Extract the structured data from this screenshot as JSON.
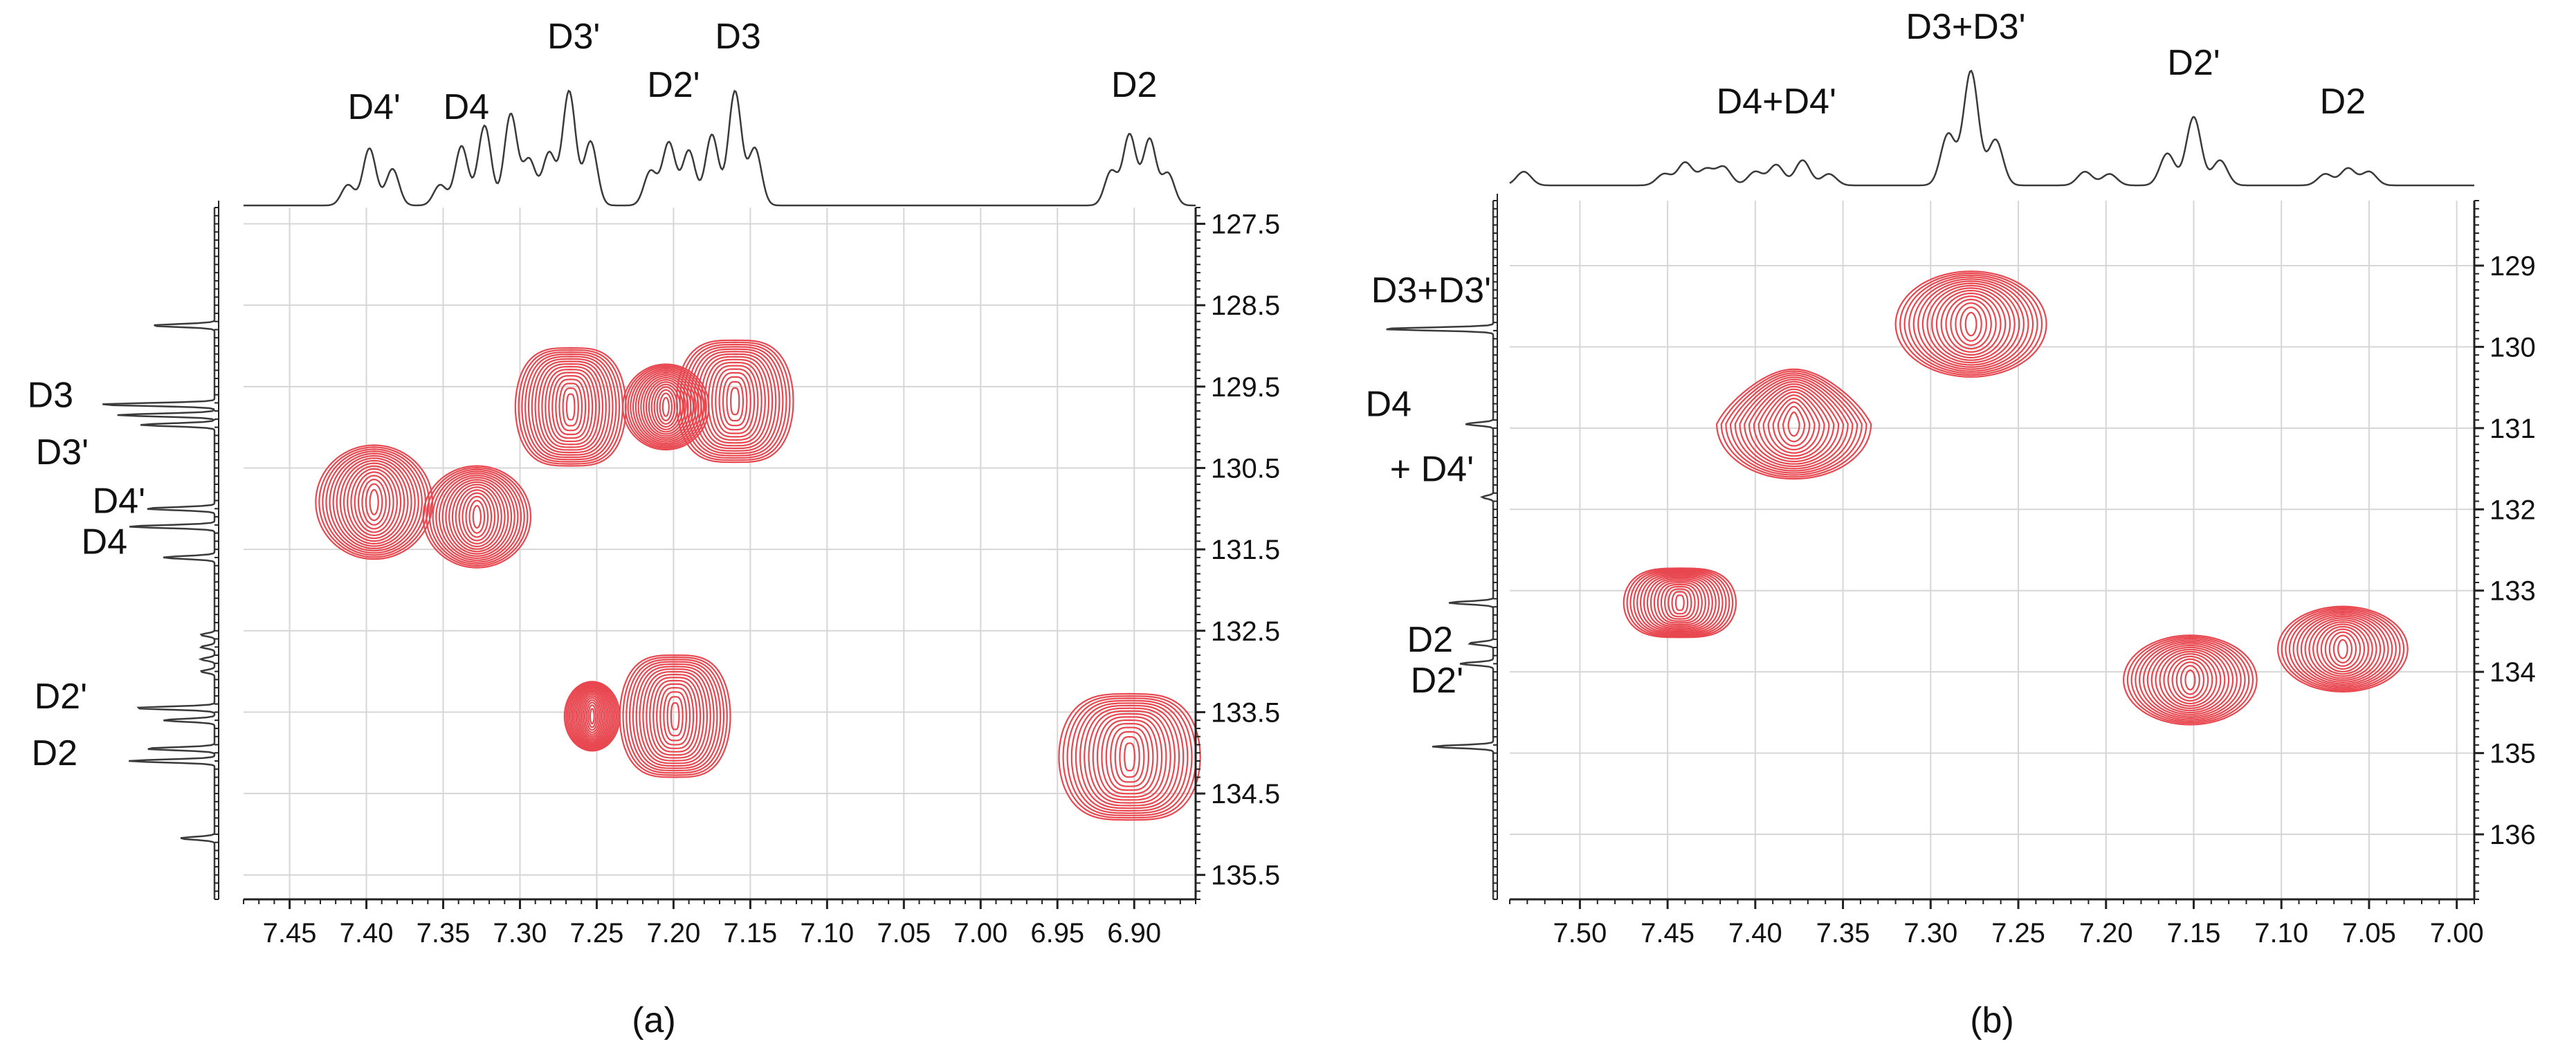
{
  "colors": {
    "contour": "#e8474f",
    "projection": "#3a3a3a",
    "grid": "#d6d6d6",
    "axis": "#222222"
  },
  "chart_data": [
    {
      "type": "heatmap",
      "panel_label": "(a)",
      "x_axis": {
        "scale": "1H chemical shift (ppm)",
        "range": [
          7.48,
          6.86
        ],
        "ticks": [
          "7.45",
          "7.40",
          "7.35",
          "7.30",
          "7.25",
          "7.20",
          "7.15",
          "7.10",
          "7.05",
          "7.00",
          "6.95",
          "6.90"
        ]
      },
      "y_axis": {
        "scale": "13C chemical shift (ppm)",
        "side": "right",
        "range": [
          127.3,
          135.8
        ],
        "ticks": [
          "127.5",
          "128.5",
          "129.5",
          "130.5",
          "131.5",
          "132.5",
          "133.5",
          "134.5",
          "135.5"
        ]
      },
      "grid": true,
      "top_projection": {
        "labels": [
          {
            "text": "D4'",
            "x": 7.395
          },
          {
            "text": "D4",
            "x": 7.335
          },
          {
            "text": "D3'",
            "x": 7.265
          },
          {
            "text": "D2'",
            "x": 7.2
          },
          {
            "text": "D3",
            "x": 7.158
          },
          {
            "text": "D2",
            "x": 6.9
          }
        ],
        "peaks": [
          {
            "x": 7.412,
            "h": 0.18
          },
          {
            "x": 7.398,
            "h": 0.5
          },
          {
            "x": 7.383,
            "h": 0.32
          },
          {
            "x": 7.352,
            "h": 0.18
          },
          {
            "x": 7.338,
            "h": 0.52
          },
          {
            "x": 7.323,
            "h": 0.7
          },
          {
            "x": 7.306,
            "h": 0.8
          },
          {
            "x": 7.294,
            "h": 0.4
          },
          {
            "x": 7.281,
            "h": 0.46
          },
          {
            "x": 7.268,
            "h": 1.0
          },
          {
            "x": 7.254,
            "h": 0.56
          },
          {
            "x": 7.215,
            "h": 0.3
          },
          {
            "x": 7.203,
            "h": 0.55
          },
          {
            "x": 7.19,
            "h": 0.48
          },
          {
            "x": 7.175,
            "h": 0.62
          },
          {
            "x": 7.16,
            "h": 1.0
          },
          {
            "x": 7.147,
            "h": 0.5
          },
          {
            "x": 6.915,
            "h": 0.3
          },
          {
            "x": 6.903,
            "h": 0.62
          },
          {
            "x": 6.89,
            "h": 0.58
          },
          {
            "x": 6.878,
            "h": 0.28
          }
        ]
      },
      "left_projection": {
        "labels": [
          {
            "text": "D3",
            "y": 129.6
          },
          {
            "text": "D3'",
            "y": 130.3
          },
          {
            "text": "D4'",
            "y": 130.9
          },
          {
            "text": "D4",
            "y": 131.4
          },
          {
            "text": "D2'",
            "y": 133.3
          },
          {
            "text": "D2",
            "y": 134.0
          }
        ],
        "peaks": [
          {
            "y": 128.75,
            "h": 0.55
          },
          {
            "y": 129.72,
            "h": 1.0
          },
          {
            "y": 129.85,
            "h": 0.85
          },
          {
            "y": 129.97,
            "h": 0.65
          },
          {
            "y": 131.0,
            "h": 0.6
          },
          {
            "y": 131.22,
            "h": 0.75
          },
          {
            "y": 131.6,
            "h": 0.45
          },
          {
            "y": 132.55,
            "h": 0.12
          },
          {
            "y": 132.7,
            "h": 0.12
          },
          {
            "y": 132.85,
            "h": 0.12
          },
          {
            "y": 133.0,
            "h": 0.12
          },
          {
            "y": 133.45,
            "h": 0.7
          },
          {
            "y": 133.6,
            "h": 0.45
          },
          {
            "y": 133.95,
            "h": 0.6
          },
          {
            "y": 134.1,
            "h": 0.75
          },
          {
            "y": 135.05,
            "h": 0.3
          }
        ]
      },
      "cross_peaks": [
        {
          "x": 7.395,
          "y": 130.92,
          "rx": 0.038,
          "ry": 1.4
        },
        {
          "x": 7.328,
          "y": 131.1,
          "rx": 0.035,
          "ry": 1.25
        },
        {
          "x": 7.267,
          "y": 129.75,
          "rx": 0.036,
          "ry": 1.45,
          "flat": true
        },
        {
          "x": 7.205,
          "y": 129.75,
          "rx": 0.028,
          "ry": 1.05
        },
        {
          "x": 7.16,
          "y": 129.68,
          "rx": 0.038,
          "ry": 1.5,
          "flat": true
        },
        {
          "x": 7.253,
          "y": 133.55,
          "rx": 0.018,
          "ry": 0.85
        },
        {
          "x": 7.199,
          "y": 133.55,
          "rx": 0.036,
          "ry": 1.5,
          "flat": true
        },
        {
          "x": 6.903,
          "y": 134.05,
          "rx": 0.046,
          "ry": 1.55,
          "flat": true
        }
      ]
    },
    {
      "type": "heatmap",
      "panel_label": "(b)",
      "x_axis": {
        "scale": "1H chemical shift (ppm)",
        "range": [
          7.54,
          6.99
        ],
        "ticks": [
          "7.50",
          "7.45",
          "7.40",
          "7.35",
          "7.30",
          "7.25",
          "7.20",
          "7.15",
          "7.10",
          "7.05",
          "7.00"
        ]
      },
      "y_axis": {
        "scale": "13C chemical shift (ppm)",
        "side": "right",
        "range": [
          128.2,
          136.8
        ],
        "ticks": [
          "129",
          "130",
          "131",
          "132",
          "133",
          "134",
          "135",
          "136"
        ]
      },
      "grid": true,
      "top_projection": {
        "labels": [
          {
            "text": "D4+D4'",
            "x": 7.388
          },
          {
            "text": "D3+D3'",
            "x": 7.28
          },
          {
            "text": "D2'",
            "x": 7.15
          },
          {
            "text": "D2",
            "x": 7.065
          }
        ],
        "peaks": [
          {
            "x": 7.532,
            "h": 0.12
          },
          {
            "x": 7.452,
            "h": 0.1
          },
          {
            "x": 7.44,
            "h": 0.2
          },
          {
            "x": 7.428,
            "h": 0.14
          },
          {
            "x": 7.418,
            "h": 0.16
          },
          {
            "x": 7.4,
            "h": 0.12
          },
          {
            "x": 7.388,
            "h": 0.18
          },
          {
            "x": 7.373,
            "h": 0.22
          },
          {
            "x": 7.358,
            "h": 0.1
          },
          {
            "x": 7.29,
            "h": 0.45
          },
          {
            "x": 7.277,
            "h": 1.0
          },
          {
            "x": 7.263,
            "h": 0.4
          },
          {
            "x": 7.212,
            "h": 0.12
          },
          {
            "x": 7.198,
            "h": 0.1
          },
          {
            "x": 7.165,
            "h": 0.28
          },
          {
            "x": 7.15,
            "h": 0.6
          },
          {
            "x": 7.135,
            "h": 0.22
          },
          {
            "x": 7.075,
            "h": 0.1
          },
          {
            "x": 7.062,
            "h": 0.15
          },
          {
            "x": 7.05,
            "h": 0.12
          }
        ]
      },
      "left_projection": {
        "labels": [
          {
            "text": "D3+D3'",
            "y": 129.3
          },
          {
            "text": "D4",
            "y": 130.7
          },
          {
            "text": "+ D4'",
            "y": 131.5
          },
          {
            "text": "D2",
            "y": 133.6
          },
          {
            "text": "D2'",
            "y": 134.1
          }
        ],
        "peaks": [
          {
            "y": 129.78,
            "h": 1.0
          },
          {
            "y": 130.95,
            "h": 0.25
          },
          {
            "y": 131.85,
            "h": 0.1
          },
          {
            "y": 133.15,
            "h": 0.4
          },
          {
            "y": 133.65,
            "h": 0.22
          },
          {
            "y": 133.9,
            "h": 0.3
          },
          {
            "y": 134.92,
            "h": 0.55
          }
        ]
      },
      "cross_peaks": [
        {
          "x": 7.443,
          "y": 133.15,
          "rx": 0.032,
          "ry": 0.85,
          "flat": true
        },
        {
          "x": 7.378,
          "y": 130.95,
          "rx": 0.044,
          "ry": 1.35,
          "teardrop": true
        },
        {
          "x": 7.277,
          "y": 129.72,
          "rx": 0.043,
          "ry": 1.3
        },
        {
          "x": 7.152,
          "y": 134.1,
          "rx": 0.038,
          "ry": 1.1
        },
        {
          "x": 7.065,
          "y": 133.72,
          "rx": 0.037,
          "ry": 1.05
        }
      ]
    }
  ]
}
